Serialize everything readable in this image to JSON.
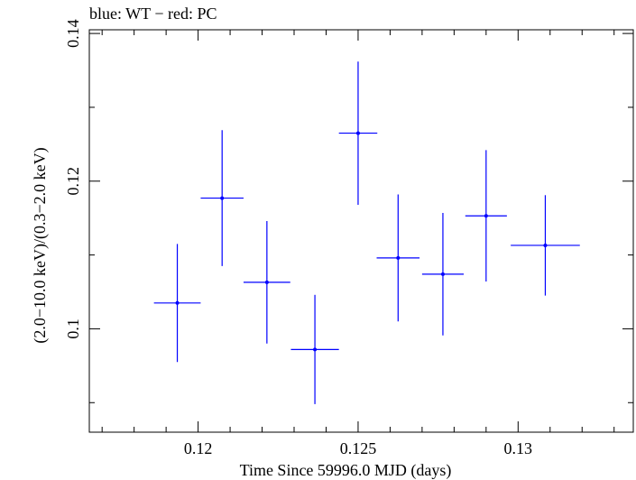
{
  "chart_data": {
    "type": "scatter",
    "title": "blue: WT − red: PC",
    "xlabel": "Time Since 59996.0 MJD (days)",
    "ylabel": "(2.0−10.0 keV)/(0.3−2.0 keV)",
    "xlim": [
      0.1166,
      0.1336
    ],
    "ylim": [
      0.086,
      0.1405
    ],
    "xticks": [
      {
        "value": 0.12,
        "label": "0.12"
      },
      {
        "value": 0.125,
        "label": "0.125"
      },
      {
        "value": 0.13,
        "label": "0.13"
      }
    ],
    "xminor": [
      0.117,
      0.118,
      0.119,
      0.121,
      0.122,
      0.123,
      0.124,
      0.126,
      0.127,
      0.128,
      0.129,
      0.131,
      0.132,
      0.133
    ],
    "yticks": [
      {
        "value": 0.1,
        "label": "0.1"
      },
      {
        "value": 0.12,
        "label": "0.12"
      },
      {
        "value": 0.14,
        "label": "0.14"
      }
    ],
    "yminor": [
      0.09,
      0.11,
      0.13
    ],
    "grid": false,
    "series": [
      {
        "color": "#0000ff",
        "points": [
          {
            "x": 0.11935,
            "y": 0.1035,
            "xerr": 0.00073,
            "yerr_lo": 0.008,
            "yerr_hi": 0.008
          },
          {
            "x": 0.12075,
            "y": 0.1177,
            "xerr": 0.00067,
            "yerr_lo": 0.0092,
            "yerr_hi": 0.0092
          },
          {
            "x": 0.12215,
            "y": 0.1063,
            "xerr": 0.00073,
            "yerr_lo": 0.0083,
            "yerr_hi": 0.0083
          },
          {
            "x": 0.12365,
            "y": 0.0972,
            "xerr": 0.00075,
            "yerr_lo": 0.0074,
            "yerr_hi": 0.0074
          },
          {
            "x": 0.125,
            "y": 0.1265,
            "xerr": 0.0006,
            "yerr_lo": 0.0097,
            "yerr_hi": 0.0097
          },
          {
            "x": 0.12625,
            "y": 0.1096,
            "xerr": 0.00067,
            "yerr_lo": 0.0086,
            "yerr_hi": 0.0086
          },
          {
            "x": 0.12765,
            "y": 0.1074,
            "xerr": 0.00065,
            "yerr_lo": 0.0083,
            "yerr_hi": 0.0083
          },
          {
            "x": 0.129,
            "y": 0.1153,
            "xerr": 0.00065,
            "yerr_lo": 0.0089,
            "yerr_hi": 0.0089
          },
          {
            "x": 0.13085,
            "y": 0.1113,
            "xerr": 0.00108,
            "yerr_lo": 0.0068,
            "yerr_hi": 0.0068
          }
        ]
      }
    ]
  }
}
